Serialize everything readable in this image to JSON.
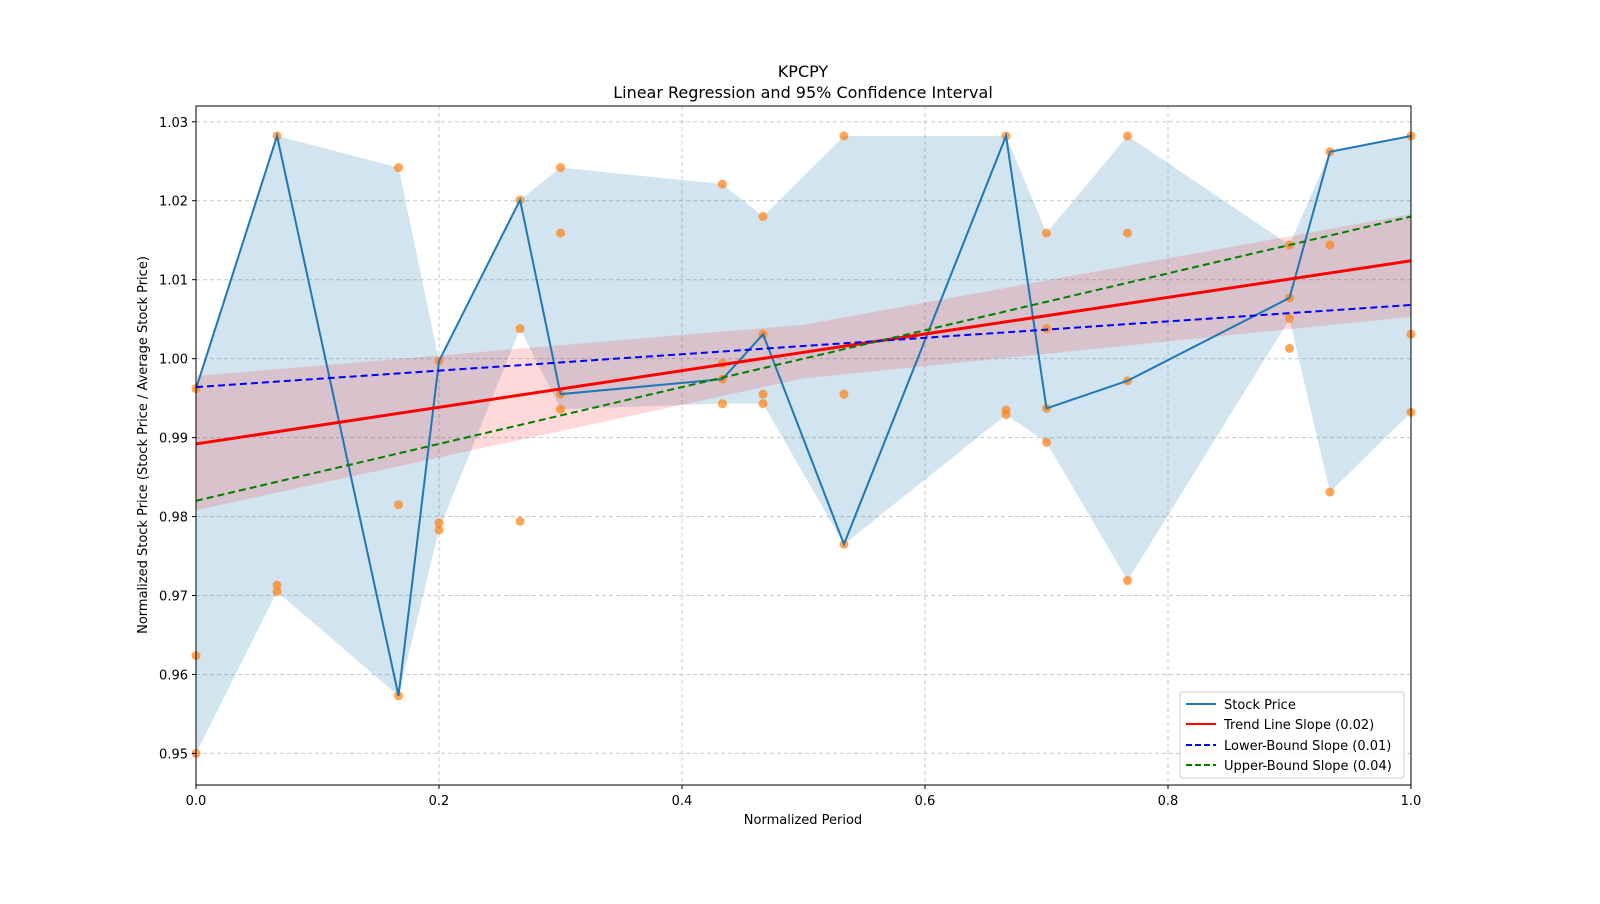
{
  "chart_data": {
    "type": "line",
    "title": "KPCPY",
    "subtitle": "Linear Regression and 95% Confidence Interval",
    "xlabel": "Normalized Period",
    "ylabel": "Normalized Stock Price (Stock Price / Average Stock Price)",
    "xlim": [
      0,
      1
    ],
    "ylim": [
      0.946,
      1.032
    ],
    "xticks": [
      0,
      0.2,
      0.4,
      0.6,
      0.8,
      1.0
    ],
    "xtick_labels": [
      "0.0",
      "0.2",
      "0.4",
      "0.6",
      "0.8",
      "1.0"
    ],
    "yticks": [
      0.95,
      0.96,
      0.97,
      0.98,
      0.99,
      1.0,
      1.01,
      1.02,
      1.03
    ],
    "ytick_labels": [
      "0.95",
      "0.96",
      "0.97",
      "0.98",
      "0.99",
      "1.00",
      "1.01",
      "1.02",
      "1.03"
    ],
    "grid": true,
    "legend_position": "lower-right",
    "stock_price": {
      "name": "Stock Price",
      "color": "#1f77b4",
      "x": [
        0,
        0.0667,
        0.1667,
        0.2,
        0.2667,
        0.3,
        0.4333,
        0.4667,
        0.5333,
        0.6667,
        0.7,
        0.7667,
        0.9,
        0.9333,
        1.0
      ],
      "y": [
        0.9962,
        1.0282,
        0.9573,
        0.9997,
        1.0201,
        0.9955,
        0.9974,
        1.0031,
        0.9765,
        1.0282,
        0.9937,
        0.9972,
        1.0077,
        1.0262,
        1.0282
      ],
      "band_lower": [
        0.95,
        0.9705,
        0.9573,
        0.9783,
        1.0038,
        0.9936,
        0.9943,
        0.9943,
        0.9765,
        0.9929,
        0.9894,
        0.9719,
        1.005,
        0.9831,
        0.9932
      ],
      "band_upper": [
        0.9962,
        1.0282,
        1.0242,
        0.9997,
        1.0201,
        1.0242,
        1.0221,
        1.018,
        1.0282,
        1.0282,
        1.0159,
        1.0282,
        1.0144,
        1.0262,
        1.0282
      ]
    },
    "scatter": {
      "color": "#ff7f0e",
      "points": [
        [
          0,
          0.9962
        ],
        [
          0,
          0.9624
        ],
        [
          0,
          0.95
        ],
        [
          0.0667,
          1.0282
        ],
        [
          0.0667,
          0.9713
        ],
        [
          0.0667,
          0.9705
        ],
        [
          0.1667,
          1.0242
        ],
        [
          0.1667,
          0.9815
        ],
        [
          0.1667,
          0.9573
        ],
        [
          0.2,
          0.9997
        ],
        [
          0.2,
          0.9792
        ],
        [
          0.2,
          0.9783
        ],
        [
          0.2667,
          1.0201
        ],
        [
          0.2667,
          1.0038
        ],
        [
          0.2667,
          0.9794
        ],
        [
          0.3,
          1.0242
        ],
        [
          0.3,
          1.0159
        ],
        [
          0.3,
          0.9955
        ],
        [
          0.3,
          0.9936
        ],
        [
          0.4333,
          1.0221
        ],
        [
          0.4333,
          0.9994
        ],
        [
          0.4333,
          0.9974
        ],
        [
          0.4333,
          0.9943
        ],
        [
          0.4667,
          1.018
        ],
        [
          0.4667,
          1.0031
        ],
        [
          0.4667,
          0.9955
        ],
        [
          0.4667,
          0.9943
        ],
        [
          0.5333,
          1.0282
        ],
        [
          0.5333,
          0.9955
        ],
        [
          0.5333,
          0.9765
        ],
        [
          0.6667,
          1.0282
        ],
        [
          0.6667,
          0.9935
        ],
        [
          0.6667,
          0.9929
        ],
        [
          0.7,
          1.0159
        ],
        [
          0.7,
          1.0038
        ],
        [
          0.7,
          0.9937
        ],
        [
          0.7,
          0.9894
        ],
        [
          0.7667,
          1.0282
        ],
        [
          0.7667,
          1.0159
        ],
        [
          0.7667,
          0.9972
        ],
        [
          0.7667,
          0.9719
        ],
        [
          0.9,
          1.0144
        ],
        [
          0.9,
          1.0077
        ],
        [
          0.9,
          1.0051
        ],
        [
          0.9,
          1.0013
        ],
        [
          0.9333,
          1.0262
        ],
        [
          0.9333,
          1.0144
        ],
        [
          0.9333,
          0.9831
        ],
        [
          1.0,
          1.0282
        ],
        [
          1.0,
          1.0031
        ],
        [
          1.0,
          0.9932
        ]
      ]
    },
    "trend": {
      "name": "Trend Line Slope (0.02)",
      "color": "#ff0000",
      "x": [
        0,
        1
      ],
      "y": [
        0.9892,
        1.0124
      ],
      "ci_x": [
        0,
        0.5,
        1
      ],
      "ci_lower": [
        0.9808,
        0.9975,
        1.0053
      ],
      "ci_upper": [
        0.9978,
        1.0043,
        1.0183
      ]
    },
    "lower_bound": {
      "name": "Lower-Bound Slope (0.01)",
      "color": "#0000ff",
      "x": [
        0,
        1
      ],
      "y": [
        0.9964,
        1.0068
      ]
    },
    "upper_bound": {
      "name": "Upper-Bound Slope (0.04)",
      "color": "#008000",
      "x": [
        0,
        1
      ],
      "y": [
        0.982,
        1.018
      ]
    }
  }
}
